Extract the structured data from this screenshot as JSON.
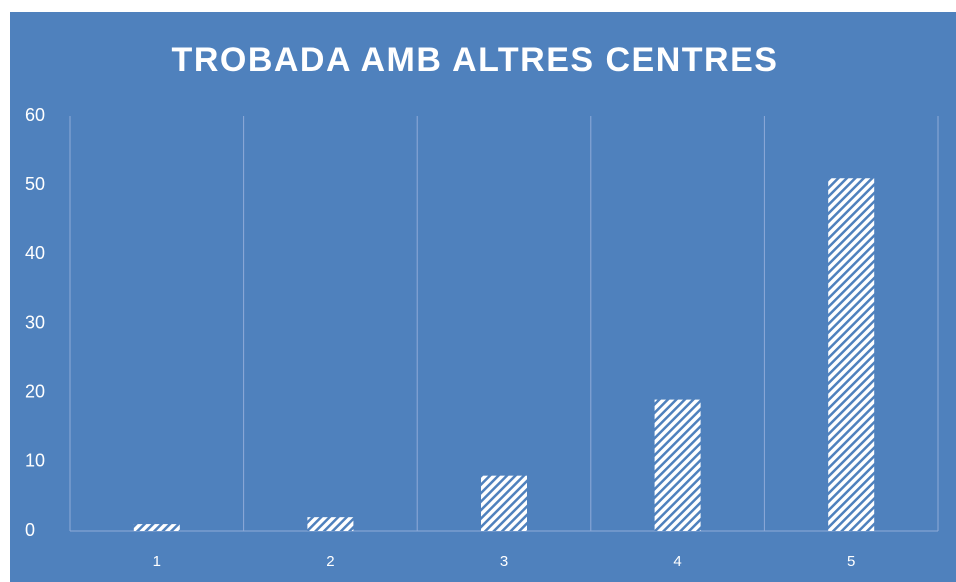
{
  "chart_data": {
    "type": "bar",
    "title": "TROBADA AMB ALTRES CENTRES",
    "categories": [
      "1",
      "2",
      "3",
      "4",
      "5"
    ],
    "values": [
      1,
      2,
      8,
      19,
      51
    ],
    "color": "#ffffff",
    "ylim": [
      0,
      60
    ],
    "yticks": [
      0,
      10,
      20,
      30,
      40,
      50,
      60
    ]
  }
}
